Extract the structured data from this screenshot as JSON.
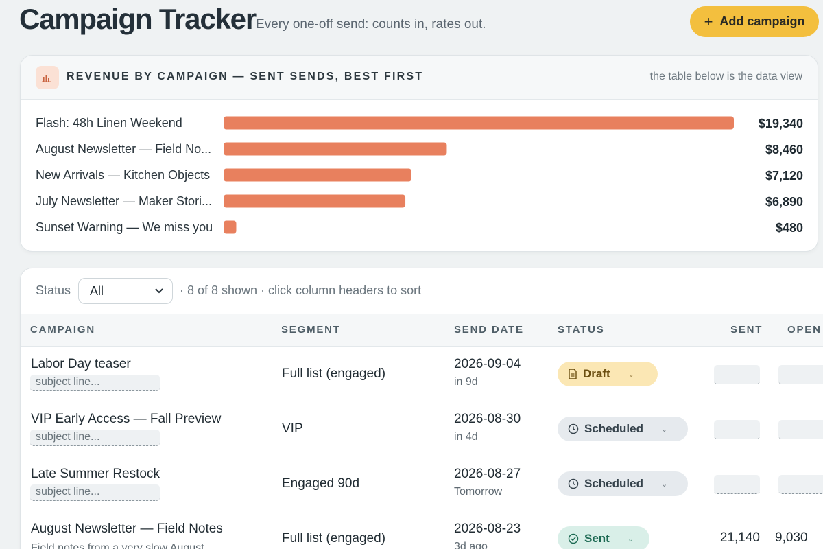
{
  "header": {
    "title": "Campaign Tracker",
    "subtitle": "Every one-off send: counts in, rates out.",
    "add_button_label": "Add campaign",
    "add_button_icon": "plus-icon"
  },
  "chart_card": {
    "icon": "bar-chart-icon",
    "title": "REVENUE BY CAMPAIGN — SENT SENDS, BEST FIRST",
    "note": "the table below is the data view",
    "accent_color": "#e8805e"
  },
  "chart_data": {
    "type": "bar",
    "orientation": "horizontal",
    "title": "REVENUE BY CAMPAIGN — SENT SENDS, BEST FIRST",
    "categories": [
      "Flash: 48h Linen Weekend",
      "August Newsletter — Field No...",
      "New Arrivals — Kitchen Objects",
      "July Newsletter — Maker Stori...",
      "Sunset Warning — We miss you"
    ],
    "values": [
      19340,
      8460,
      7120,
      6890,
      480
    ],
    "value_labels": [
      "$19,340",
      "$8,460",
      "$7,120",
      "$6,890",
      "$480"
    ],
    "xlim": [
      0,
      19340
    ],
    "grid": false
  },
  "filters": {
    "status_label": "Status",
    "status_selected": "All",
    "info": "· 8 of 8 shown · click column headers to sort"
  },
  "table": {
    "columns": [
      "CAMPAIGN",
      "SEGMENT",
      "SEND DATE",
      "STATUS",
      "SENT",
      "OPEN"
    ],
    "rows": [
      {
        "name": "Labor Day teaser",
        "subject_placeholder": "subject line...",
        "segment": "Full list (engaged)",
        "date": "2026-09-04",
        "date_rel": "in 9d",
        "status": "Draft",
        "status_icon": "document-icon",
        "sent": "",
        "open": ""
      },
      {
        "name": "VIP Early Access — Fall Preview",
        "subject_placeholder": "subject line...",
        "segment": "VIP",
        "date": "2026-08-30",
        "date_rel": "in 4d",
        "status": "Scheduled",
        "status_icon": "clock-icon",
        "sent": "",
        "open": ""
      },
      {
        "name": "Late Summer Restock",
        "subject_placeholder": "subject line...",
        "segment": "Engaged 90d",
        "date": "2026-08-27",
        "date_rel": "Tomorrow",
        "status": "Scheduled",
        "status_icon": "clock-icon",
        "sent": "",
        "open": ""
      },
      {
        "name": "August Newsletter — Field Notes",
        "subject": "Field notes from a very slow August",
        "segment": "Full list (engaged)",
        "date": "2026-08-23",
        "date_rel": "3d ago",
        "status": "Sent",
        "status_icon": "check-circle-icon",
        "sent": "21,140",
        "open": "9,030"
      }
    ]
  }
}
